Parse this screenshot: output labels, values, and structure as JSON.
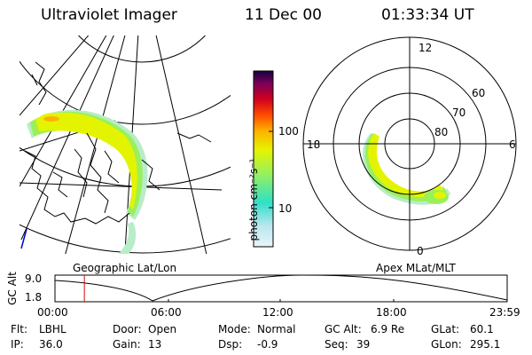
{
  "header": {
    "title": "Ultraviolet Imager",
    "date": "11 Dec 00",
    "time": "01:33:34 UT"
  },
  "left_map": {
    "caption": "Geographic Lat/Lon"
  },
  "colorbar": {
    "label": "photon cm⁻²s⁻¹",
    "ticks": [
      "100",
      "10"
    ],
    "stops": [
      "#e8f6f8",
      "#b9e6ee",
      "#2ee0c8",
      "#9af05a",
      "#e4f400",
      "#ffb000",
      "#ff4a00",
      "#d0001e",
      "#7a0058",
      "#140040"
    ]
  },
  "polar_plot": {
    "caption": "Apex MLat/MLT",
    "mlt_labels": {
      "top": "12",
      "left": "18",
      "right": "6",
      "bottom": "0"
    },
    "lat_labels": [
      "60",
      "70",
      "80"
    ]
  },
  "timeline": {
    "ylabel": "GC Alt",
    "y_ticks": [
      "9.0",
      "1.8"
    ],
    "x_ticks": [
      "00:00",
      "06:00",
      "12:00",
      "18:00",
      "23:59"
    ],
    "marker_time_hours": 1.56
  },
  "info": {
    "flt_label": "Flt:",
    "flt_value": "LBHL",
    "ip_label": "IP:",
    "ip_value": "36.0",
    "door_label": "Door:",
    "door_value": "Open",
    "gain_label": "Gain:",
    "gain_value": "13",
    "mode_label": "Mode:",
    "mode_value": "Normal",
    "dsp_label": "Dsp:",
    "dsp_value": "-0.9",
    "gcalt_label": "GC Alt:",
    "gcalt_value": "6.9 Re",
    "seq_label": "Seq:",
    "seq_value": "39",
    "glat_label": "GLat:",
    "glat_value": "60.1",
    "glon_label": "GLon:",
    "glon_value": "295.1"
  }
}
